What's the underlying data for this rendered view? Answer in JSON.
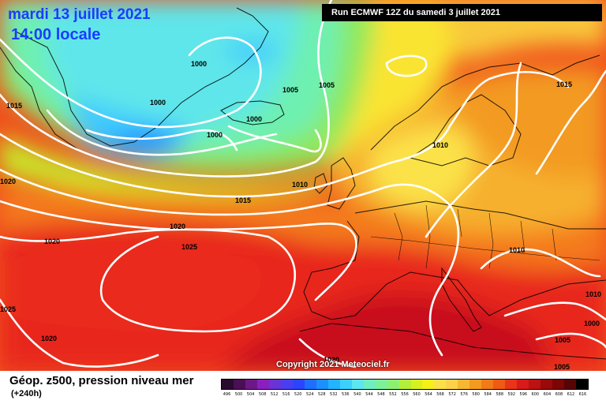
{
  "header": {
    "date": "mardi 13 juillet 2021",
    "time": "14:00 locale",
    "run": "Run ECMWF 12Z du samedi 3 juillet 2021"
  },
  "footer": {
    "title": "Géop. z500, pression niveau mer",
    "lead": "(+240h)",
    "copyright": "Copyright 2021 Meteociel.fr"
  },
  "scale": {
    "labels": [
      "496",
      "500",
      "504",
      "508",
      "512",
      "516",
      "520",
      "524",
      "528",
      "532",
      "536",
      "540",
      "544",
      "548",
      "552",
      "556",
      "560",
      "564",
      "568",
      "572",
      "576",
      "580",
      "584",
      "588",
      "592",
      "596",
      "600",
      "604",
      "608",
      "612",
      "616"
    ],
    "colors": [
      "#2a0a2e",
      "#4b0f55",
      "#6d1887",
      "#8b1fbd",
      "#6a33d6",
      "#4a3ff0",
      "#2b45ff",
      "#1f6fff",
      "#1d8fff",
      "#22b4ff",
      "#3dd0ff",
      "#5ee6f0",
      "#70eec0",
      "#7df09a",
      "#8ef070",
      "#b4ee3a",
      "#d8f020",
      "#f4f018",
      "#fbe04a",
      "#fdd24a",
      "#f6b830",
      "#f59a20",
      "#f27a18",
      "#ef5a14",
      "#e83418",
      "#d81a1a",
      "#bc1212",
      "#9a0a0a",
      "#7a0606",
      "#560404",
      "#000000"
    ]
  },
  "isobars": {
    "labels": [
      "1000",
      "1000",
      "1000",
      "1000",
      "1005",
      "1005",
      "1015",
      "1015",
      "1010",
      "1010",
      "1010",
      "1010",
      "1015",
      "1020",
      "1020",
      "1020",
      "1025",
      "1025",
      "1020",
      "1020",
      "1005",
      "1000",
      "1005",
      "1020"
    ]
  }
}
